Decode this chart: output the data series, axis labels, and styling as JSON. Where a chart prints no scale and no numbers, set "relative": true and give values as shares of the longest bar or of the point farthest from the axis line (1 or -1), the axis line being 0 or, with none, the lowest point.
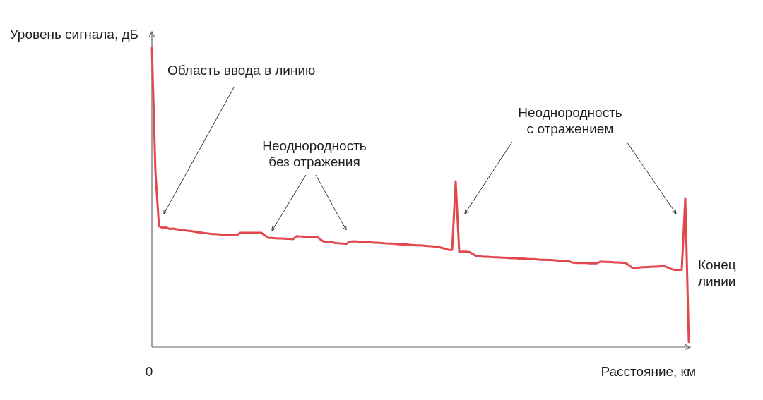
{
  "chart_data": {
    "type": "line",
    "relative": true,
    "color": "#e2474c",
    "ylabel": "Уровень сигнала, дБ",
    "xlabel": "Расстояние, км",
    "annotations": [
      "0",
      "Область ввода в линию",
      "Неоднородность\nбез отражения",
      "Неоднородность\nс отражением",
      "Конец\nлинии"
    ],
    "categories": [
      null,
      null,
      null,
      null,
      null,
      null,
      null,
      null,
      null,
      null,
      null,
      null,
      null,
      null,
      null,
      null,
      null,
      null,
      null,
      null,
      null,
      null,
      null,
      null,
      null,
      null,
      null,
      null,
      null,
      null,
      null,
      null,
      null,
      null,
      null,
      null,
      null,
      null,
      null,
      null,
      null,
      null,
      null,
      null,
      null,
      null,
      null,
      null,
      null,
      null,
      null,
      null,
      null,
      null,
      null,
      null,
      null,
      null,
      null,
      null,
      null,
      null,
      null,
      null,
      null,
      null,
      null,
      null,
      null,
      null,
      null,
      null,
      null,
      null,
      null,
      null,
      null,
      null,
      null,
      null,
      null,
      null,
      null,
      null,
      null,
      null,
      null,
      null,
      null,
      null,
      null,
      null,
      null,
      null,
      null,
      null,
      null,
      null,
      null,
      null,
      null,
      null,
      null,
      null,
      null,
      null,
      null,
      null,
      null,
      null,
      null,
      null,
      null,
      null,
      null,
      null,
      null,
      null,
      null,
      null,
      null,
      null,
      null,
      null,
      null,
      null,
      null,
      null,
      null,
      null,
      null,
      null,
      null,
      null,
      null,
      null,
      null,
      null,
      null,
      null,
      null,
      null,
      null,
      null,
      null,
      null,
      null,
      null,
      null,
      null,
      null,
      null,
      null
    ],
    "values": [
      1,
      0.585,
      0.404,
      0.399,
      0.4,
      0.395,
      0.396,
      0.394,
      0.392,
      0.391,
      0.389,
      0.388,
      0.386,
      0.384,
      0.383,
      0.381,
      0.38,
      0.378,
      0.378,
      0.377,
      0.376,
      0.376,
      0.375,
      0.375,
      0.374,
      0.382,
      0.382,
      0.382,
      0.382,
      0.382,
      0.382,
      0.382,
      0.373,
      0.365,
      0.365,
      0.364,
      0.363,
      0.363,
      0.362,
      0.362,
      0.361,
      0.371,
      0.37,
      0.369,
      0.369,
      0.368,
      0.367,
      0.367,
      0.357,
      0.351,
      0.35,
      0.35,
      0.348,
      0.347,
      0.346,
      0.345,
      0.352,
      0.354,
      0.353,
      0.352,
      0.352,
      0.351,
      0.35,
      0.349,
      0.349,
      0.348,
      0.347,
      0.346,
      0.346,
      0.345,
      0.344,
      0.343,
      0.343,
      0.342,
      0.341,
      0.34,
      0.34,
      0.339,
      0.338,
      0.337,
      0.336,
      0.335,
      0.332,
      0.329,
      0.325,
      0.325,
      0.554,
      0.318,
      0.319,
      0.319,
      0.317,
      0.31,
      0.304,
      0.303,
      0.302,
      0.302,
      0.301,
      0.3,
      0.3,
      0.299,
      0.299,
      0.298,
      0.297,
      0.297,
      0.296,
      0.296,
      0.295,
      0.294,
      0.294,
      0.293,
      0.292,
      0.292,
      0.291,
      0.291,
      0.29,
      0.289,
      0.289,
      0.288,
      0.287,
      0.283,
      0.281,
      0.281,
      0.281,
      0.281,
      0.28,
      0.28,
      0.28,
      0.286,
      0.285,
      0.285,
      0.284,
      0.283,
      0.283,
      0.282,
      0.282,
      0.274,
      0.265,
      0.265,
      0.266,
      0.267,
      0.267,
      0.268,
      0.269,
      0.269,
      0.27,
      0.271,
      0.266,
      0.261,
      0.258,
      0.258,
      0.258,
      0.498,
      0.017
    ]
  }
}
